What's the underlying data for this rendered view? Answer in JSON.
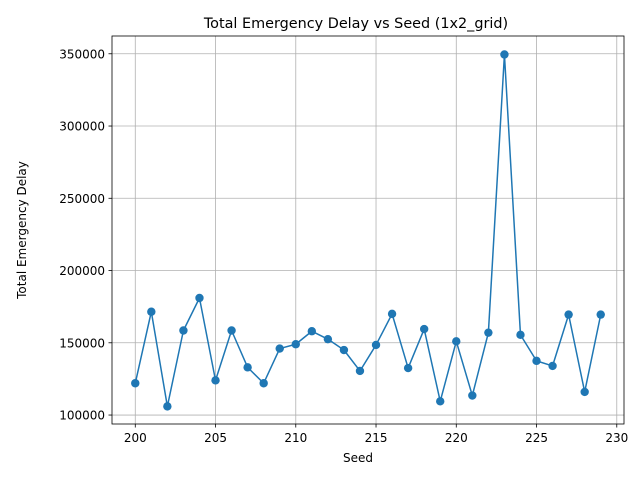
{
  "chart_data": {
    "type": "line",
    "title": "Total Emergency Delay vs Seed (1x2_grid)",
    "xlabel": "Seed",
    "ylabel": "Total Emergency Delay",
    "xlim": [
      198.55,
      230.45
    ],
    "ylim": [
      93800,
      362300
    ],
    "xticks": [
      200,
      205,
      210,
      215,
      220,
      225,
      230
    ],
    "yticks": [
      100000,
      150000,
      200000,
      250000,
      300000,
      350000
    ],
    "grid": true,
    "marker": "circle",
    "color": "#1f77b4",
    "series": [
      {
        "x": [
          200,
          201,
          202,
          203,
          204,
          205,
          206,
          207,
          208,
          209,
          210,
          211,
          212,
          213,
          214,
          215,
          216,
          217,
          218,
          219,
          220,
          221,
          222,
          223,
          224,
          225,
          226,
          227,
          228,
          229
        ],
        "values": [
          122000,
          171500,
          106000,
          158500,
          181000,
          124000,
          158500,
          133000,
          122000,
          146000,
          149000,
          158000,
          152500,
          145000,
          130500,
          148500,
          170000,
          132500,
          159500,
          109500,
          151000,
          113500,
          157000,
          349500,
          155500,
          137500,
          134000,
          169500,
          116000,
          169500
        ]
      }
    ]
  }
}
